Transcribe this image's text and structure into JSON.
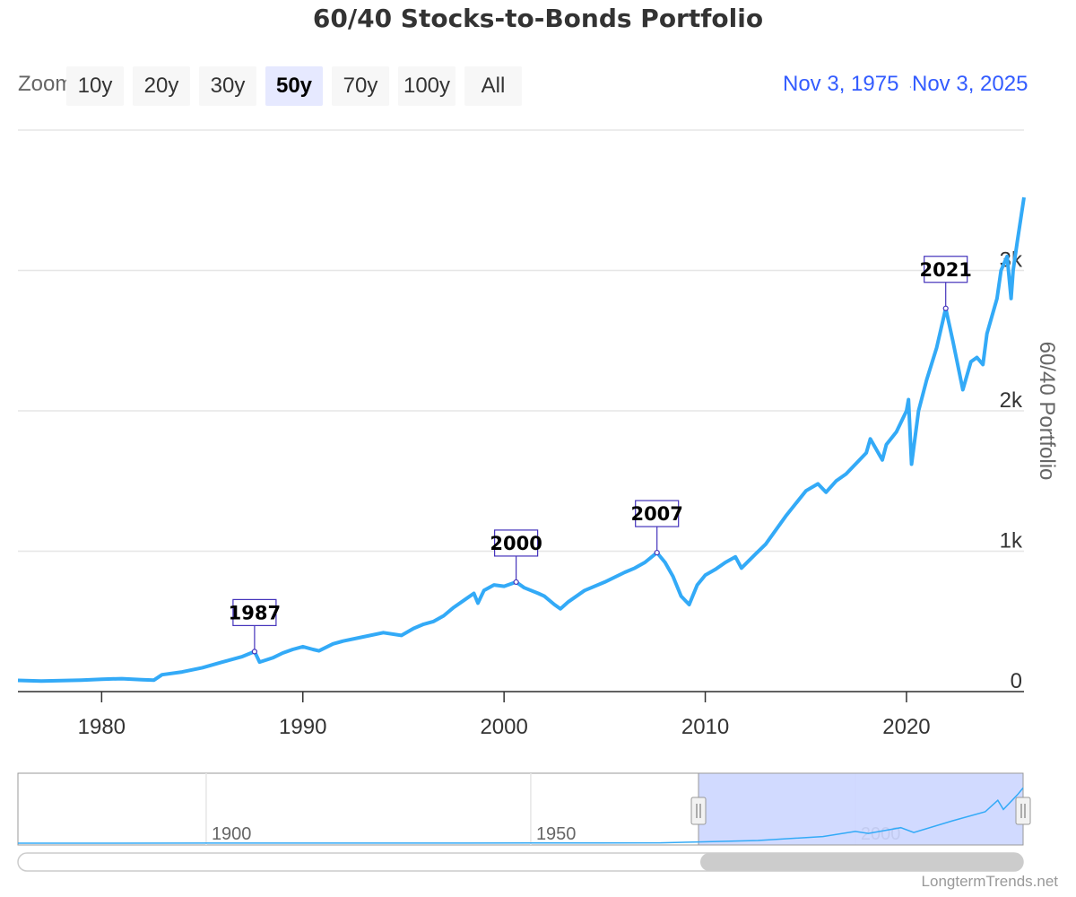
{
  "title": "60/40 Stocks-to-Bonds Portfolio",
  "zoom": {
    "label": "Zoom",
    "buttons": [
      {
        "label": "10y",
        "active": false
      },
      {
        "label": "20y",
        "active": false
      },
      {
        "label": "30y",
        "active": false
      },
      {
        "label": "50y",
        "active": true
      },
      {
        "label": "70y",
        "active": false
      },
      {
        "label": "100y",
        "active": false
      },
      {
        "label": "All",
        "active": false
      }
    ]
  },
  "range": {
    "from": "Nov 3, 1975",
    "to": "Nov 3, 2025"
  },
  "credit": "LongtermTrends.net",
  "colors": {
    "series": "#33aaf7",
    "accent": "#335cff",
    "annotation": "#4433bb",
    "navigator_mask": "#ccd6ff"
  },
  "chart_data": {
    "type": "line",
    "title": "60/40 Stocks-to-Bonds Portfolio",
    "xlabel": "",
    "ylabel": "60/40 Portfolio",
    "xlim": [
      1975.84,
      2025.84
    ],
    "ylim": [
      0,
      4000
    ],
    "x_ticks": [
      1980,
      1990,
      2000,
      2010,
      2020
    ],
    "y_ticks": [
      0,
      1000,
      2000,
      3000
    ],
    "y_tick_labels": [
      "0",
      "1k",
      "2k",
      "3k"
    ],
    "grid": true,
    "legend": "none",
    "series": [
      {
        "name": "60/40 Portfolio",
        "x": [
          1975.84,
          1977.0,
          1978.0,
          1979.0,
          1980.0,
          1981.0,
          1982.0,
          1982.6,
          1983.0,
          1984.0,
          1985.0,
          1986.0,
          1987.0,
          1987.6,
          1987.85,
          1988.5,
          1989.0,
          1989.5,
          1990.0,
          1990.5,
          1990.8,
          1991.5,
          1992.0,
          1993.0,
          1994.0,
          1994.9,
          1995.5,
          1996.0,
          1996.5,
          1997.0,
          1997.5,
          1998.0,
          1998.5,
          1998.7,
          1999.0,
          1999.5,
          2000.0,
          2000.6,
          2001.0,
          2001.7,
          2002.0,
          2002.5,
          2002.8,
          2003.2,
          2004.0,
          2005.0,
          2006.0,
          2006.5,
          2007.0,
          2007.6,
          2008.0,
          2008.4,
          2008.8,
          2009.2,
          2009.6,
          2010.0,
          2010.5,
          2011.0,
          2011.5,
          2011.8,
          2012.5,
          2013.0,
          2014.0,
          2015.0,
          2015.6,
          2016.0,
          2016.5,
          2017.0,
          2018.0,
          2018.2,
          2018.8,
          2019.0,
          2019.5,
          2020.0,
          2020.1,
          2020.25,
          2020.6,
          2021.0,
          2021.5,
          2021.95,
          2022.3,
          2022.8,
          2023.2,
          2023.5,
          2023.8,
          2024.0,
          2024.5,
          2024.7,
          2025.0,
          2025.2,
          2025.3,
          2025.5,
          2025.84
        ],
        "values": [
          80,
          75,
          78,
          82,
          88,
          92,
          85,
          82,
          120,
          140,
          170,
          210,
          250,
          285,
          210,
          240,
          275,
          300,
          320,
          300,
          290,
          340,
          360,
          390,
          420,
          400,
          450,
          480,
          500,
          540,
          600,
          650,
          700,
          630,
          720,
          760,
          750,
          780,
          740,
          700,
          680,
          620,
          590,
          640,
          720,
          780,
          850,
          880,
          920,
          990,
          920,
          820,
          680,
          620,
          760,
          830,
          870,
          920,
          960,
          880,
          980,
          1050,
          1250,
          1430,
          1480,
          1420,
          1500,
          1550,
          1700,
          1800,
          1650,
          1760,
          1850,
          2000,
          2080,
          1620,
          2000,
          2220,
          2450,
          2730,
          2500,
          2150,
          2350,
          2380,
          2330,
          2550,
          2800,
          3000,
          3100,
          2800,
          3000,
          3200,
          3520
        ]
      }
    ],
    "annotations": [
      {
        "label": "1987",
        "x": 1987.6,
        "y": 285
      },
      {
        "label": "2000",
        "x": 2000.6,
        "y": 780
      },
      {
        "label": "2007",
        "x": 2007.6,
        "y": 990
      },
      {
        "label": "2021",
        "x": 2021.95,
        "y": 2730
      }
    ],
    "navigator": {
      "x_ticks": [
        1900,
        1950,
        2000
      ],
      "xlim": [
        1871,
        2025.84
      ],
      "selected": [
        1975.84,
        2025.84
      ],
      "series": {
        "x": [
          1871,
          1900,
          1920,
          1940,
          1950,
          1960,
          1970,
          1975.84,
          1985,
          1995,
          2000,
          2002,
          2007,
          2009,
          2015,
          2020,
          2021.95,
          2022.8,
          2025,
          2025.84
        ],
        "values": [
          2,
          4,
          6,
          8,
          10,
          15,
          25,
          80,
          170,
          420,
          750,
          620,
          990,
          680,
          1430,
          2000,
          2730,
          2150,
          3100,
          3520
        ]
      }
    }
  }
}
